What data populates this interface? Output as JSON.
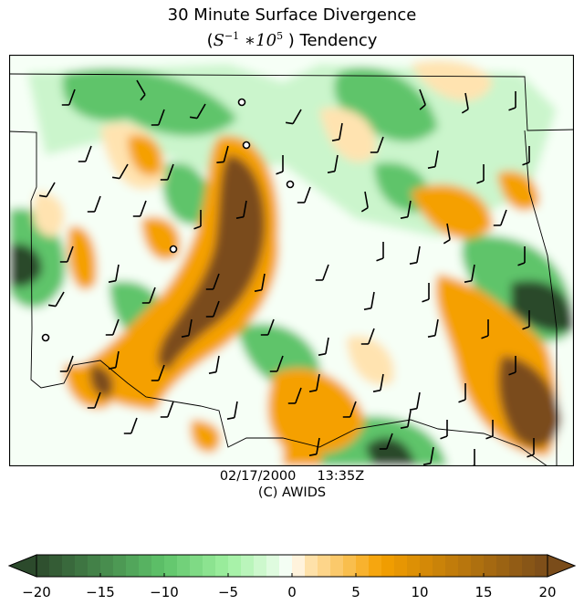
{
  "title": {
    "line1": "30 Minute Surface Divergence",
    "line2_open": "(",
    "line2_math_base": "S",
    "line2_math_exp1": "−1",
    "line2_math_mid": " ∗10",
    "line2_math_exp2": "5",
    "line2_close": " ) Tendency"
  },
  "caption": {
    "date": "02/17/2000",
    "time": "13:35Z",
    "credit": "(C) AWIDS"
  },
  "colorbar": {
    "min": -20,
    "max": 20,
    "tick_values": [
      -20,
      -15,
      -10,
      -5,
      0,
      5,
      10,
      15,
      20
    ],
    "tick_labels": [
      "−20",
      "−15",
      "−10",
      "−5",
      "0",
      "5",
      "10",
      "15",
      "20"
    ],
    "extend": "both"
  },
  "colors": {
    "strong_convergence": "#2c4a2c",
    "moderate_convergence": "#5fc46a",
    "weak_convergence": "#cbf5cc",
    "neutral": "#f6fff6",
    "weak_divergence": "#ffe3b0",
    "moderate_divergence": "#f5a000",
    "strong_divergence": "#7a4c1a"
  },
  "map": {
    "features": [
      "divergence-contours",
      "state-boundaries",
      "wind-barbs",
      "calm-wind-circles"
    ]
  }
}
